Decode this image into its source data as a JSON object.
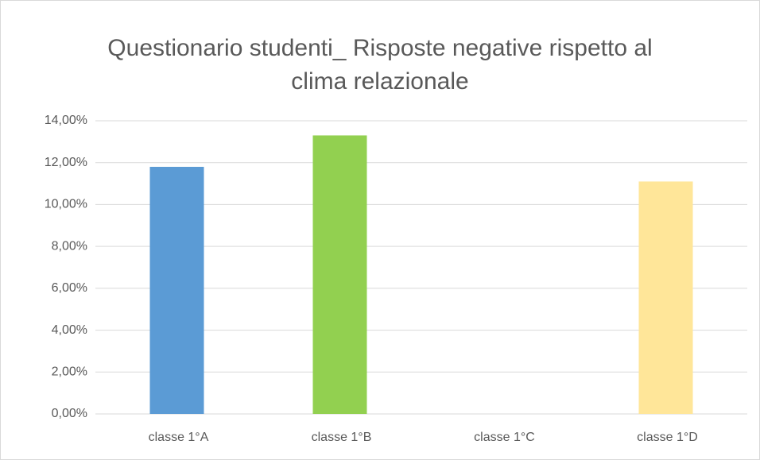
{
  "chart_data": {
    "type": "bar",
    "title": "Questionario studenti_ Risposte negative rispetto al clima relazionale",
    "categories": [
      "classe 1°A",
      "classe 1°B",
      "classe 1°C",
      "classe 1°D"
    ],
    "values": [
      11.8,
      13.3,
      0,
      11.1
    ],
    "colors": [
      "#5b9bd5",
      "#92d050",
      "#ffc000",
      "#ffe699"
    ],
    "ylim": [
      0,
      14
    ],
    "yticks": [
      {
        "value": 0,
        "label": "0,00%"
      },
      {
        "value": 2,
        "label": "2,00%"
      },
      {
        "value": 4,
        "label": "4,00%"
      },
      {
        "value": 6,
        "label": "6,00%"
      },
      {
        "value": 8,
        "label": "8,00%"
      },
      {
        "value": 10,
        "label": "10,00%"
      },
      {
        "value": 12,
        "label": "12,00%"
      },
      {
        "value": 14,
        "label": "14,00%"
      }
    ],
    "grid": true
  }
}
